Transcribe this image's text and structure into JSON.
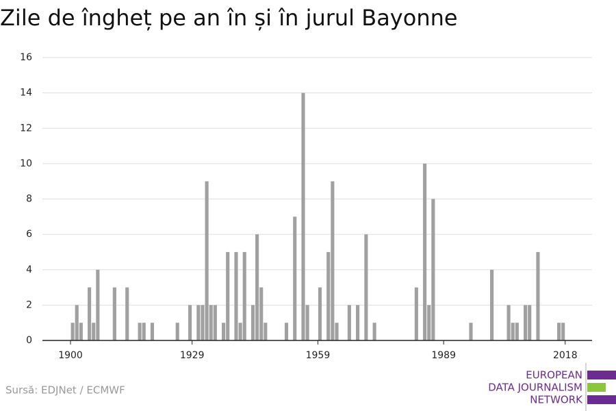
{
  "chart_data": {
    "type": "bar",
    "title": "Zile de îngheț pe an în și în jurul Bayonne",
    "source": "Sursă: EDJNet / ECMWF",
    "logo": [
      "EUROPEAN",
      "DATA JOURNALISM",
      "NETWORK"
    ],
    "color": "#a0a0a0",
    "x": [
      1900,
      1901,
      1902,
      1904,
      1905,
      1906,
      1910,
      1913,
      1916,
      1917,
      1919,
      1925,
      1928,
      1930,
      1931,
      1932,
      1933,
      1934,
      1936,
      1937,
      1939,
      1940,
      1941,
      1943,
      1944,
      1945,
      1946,
      1951,
      1953,
      1955,
      1956,
      1959,
      1961,
      1962,
      1963,
      1966,
      1968,
      1970,
      1972,
      1982,
      1984,
      1985,
      1986,
      1995,
      2000,
      2004,
      2005,
      2006,
      2008,
      2009,
      2011,
      2016,
      2017
    ],
    "values": [
      1,
      2,
      1,
      3,
      1,
      4,
      3,
      3,
      1,
      1,
      1,
      1,
      2,
      2,
      2,
      9,
      2,
      2,
      1,
      5,
      5,
      1,
      5,
      2,
      6,
      3,
      1,
      1,
      7,
      14,
      2,
      3,
      5,
      9,
      1,
      2,
      2,
      6,
      1,
      3,
      10,
      2,
      8,
      1,
      4,
      2,
      1,
      1,
      2,
      2,
      5,
      1,
      1
    ],
    "xlim": [
      1893.3,
      2024.4
    ],
    "xticks": [
      1900,
      1929,
      1959,
      1989,
      2018
    ],
    "ylim": [
      0,
      16
    ],
    "yticks": [
      0,
      2,
      4,
      6,
      8,
      10,
      12,
      14,
      16
    ],
    "grid": true
  }
}
